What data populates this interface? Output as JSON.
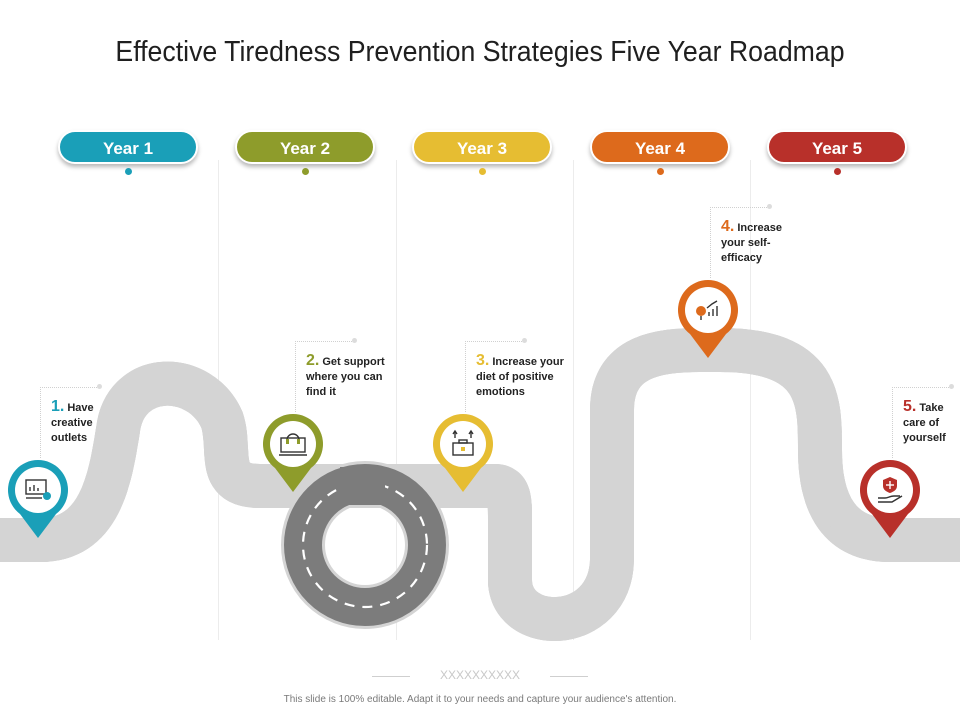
{
  "title": "Effective Tiredness Prevention Strategies Five Year Roadmap",
  "years": [
    {
      "label": "Year 1",
      "color": "#1a9fb8"
    },
    {
      "label": "Year 2",
      "color": "#8e9c2b"
    },
    {
      "label": "Year 3",
      "color": "#e6bd32"
    },
    {
      "label": "Year 4",
      "color": "#dd6a1c"
    },
    {
      "label": "Year 5",
      "color": "#b8302a"
    }
  ],
  "milestones": [
    {
      "number": "1.",
      "text": "Have creative outlets",
      "icon": "presentation-chart-icon"
    },
    {
      "number": "2.",
      "text": "Get support where you can find it",
      "icon": "headset-computer-icon"
    },
    {
      "number": "3.",
      "text": "Increase your diet of positive emotions",
      "icon": "briefcase-growth-icon"
    },
    {
      "number": "4.",
      "text": "Increase your self-efficacy",
      "icon": "idea-chart-icon"
    },
    {
      "number": "5.",
      "text": "Take care of yourself",
      "icon": "hand-shield-icon"
    }
  ],
  "divider_text": "XXXXXXXXXX",
  "footer": "This slide is 100% editable. Adapt it to your needs and capture your audience's attention."
}
